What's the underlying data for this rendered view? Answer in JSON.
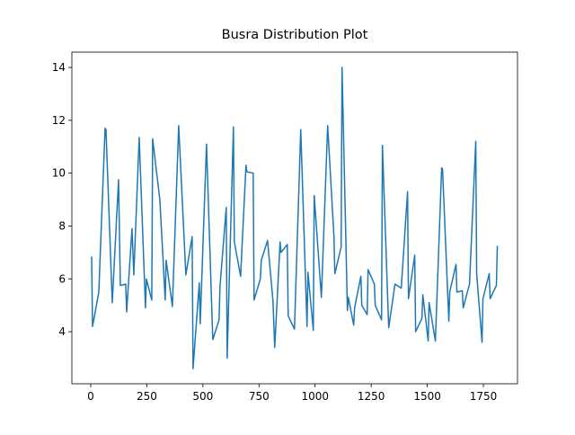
{
  "chart_data": {
    "type": "line",
    "title": "Busra Distribution Plot",
    "x": [
      4,
      8,
      36,
      64,
      68,
      96,
      124,
      132,
      156,
      160,
      184,
      192,
      216,
      244,
      248,
      272,
      276,
      308,
      332,
      336,
      364,
      392,
      424,
      452,
      456,
      484,
      488,
      516,
      544,
      572,
      576,
      604,
      608,
      636,
      640,
      668,
      692,
      696,
      724,
      728,
      756,
      760,
      788,
      812,
      820,
      844,
      848,
      876,
      880,
      908,
      936,
      964,
      968,
      992,
      996,
      1028,
      1056,
      1084,
      1088,
      1116,
      1120,
      1144,
      1148,
      1172,
      1176,
      1204,
      1208,
      1232,
      1236,
      1264,
      1268,
      1296,
      1300,
      1328,
      1356,
      1384,
      1412,
      1416,
      1444,
      1448,
      1476,
      1480,
      1504,
      1508,
      1536,
      1564,
      1568,
      1596,
      1600,
      1628,
      1632,
      1656,
      1660,
      1688,
      1716,
      1720,
      1744,
      1748,
      1776,
      1780,
      1808,
      1812
    ],
    "series": [
      {
        "color": "#1f77b4",
        "values": [
          6.85,
          4.2,
          5.5,
          11.7,
          11.65,
          5.1,
          9.75,
          5.75,
          5.8,
          4.75,
          7.9,
          6.15,
          11.35,
          4.9,
          6.0,
          5.2,
          11.3,
          9.0,
          5.2,
          6.7,
          4.95,
          11.8,
          6.15,
          7.6,
          2.6,
          5.85,
          4.3,
          11.1,
          3.7,
          4.45,
          5.7,
          8.7,
          3.0,
          11.75,
          7.4,
          6.1,
          10.3,
          10.05,
          10.0,
          5.2,
          6.0,
          6.7,
          7.45,
          5.2,
          3.4,
          7.4,
          7.0,
          7.3,
          4.6,
          4.1,
          11.65,
          4.2,
          6.25,
          4.05,
          9.15,
          5.3,
          11.8,
          7.6,
          6.2,
          7.2,
          14.0,
          4.8,
          5.3,
          4.25,
          4.9,
          6.1,
          5.0,
          4.65,
          6.35,
          5.8,
          5.0,
          4.45,
          11.05,
          4.15,
          5.8,
          5.65,
          9.3,
          5.25,
          6.9,
          4.0,
          4.5,
          5.4,
          3.65,
          5.1,
          3.65,
          10.2,
          10.15,
          4.4,
          5.5,
          6.55,
          5.5,
          5.55,
          4.9,
          5.8,
          11.2,
          6.2,
          3.6,
          5.25,
          6.2,
          5.25,
          5.75,
          7.25
        ]
      }
    ],
    "xlim": [
      -84,
      1902
    ],
    "ylim": [
      2.03,
      14.58
    ],
    "xticks": [
      0,
      250,
      500,
      750,
      1000,
      1250,
      1500,
      1750
    ],
    "yticks": [
      4,
      6,
      8,
      10,
      12,
      14
    ]
  }
}
